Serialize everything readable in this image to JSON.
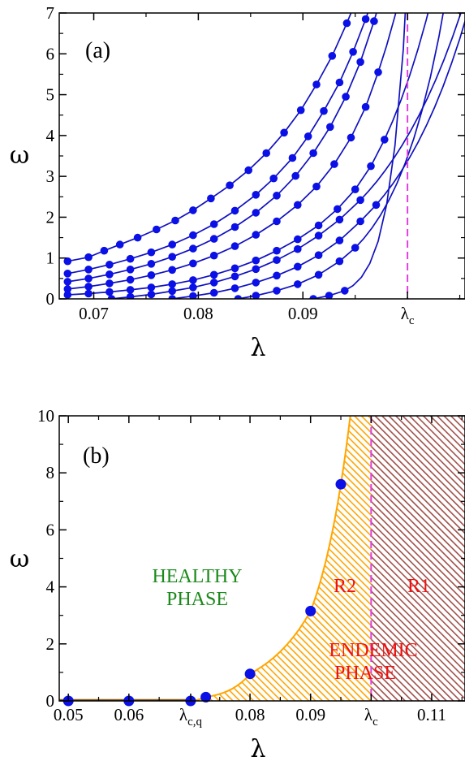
{
  "chart_data": [
    {
      "type": "line",
      "panel": "(a)",
      "xlabel": "λ",
      "ylabel": "ω",
      "xlim": [
        0.0667,
        0.1055
      ],
      "ylim": [
        0,
        7
      ],
      "x_ticks": [
        {
          "value": 0.07,
          "label": "0.07"
        },
        {
          "value": 0.08,
          "label": "0.08"
        },
        {
          "value": 0.09,
          "label": "0.09"
        },
        {
          "value": 0.1,
          "label": "λ",
          "sub": "c"
        }
      ],
      "y_ticks": [
        0,
        1,
        2,
        3,
        4,
        5,
        6,
        7
      ],
      "lambda_c": 0.1,
      "colors": {
        "curve": "#1010c0",
        "point": "#0a10e6",
        "critical_line": "#e040e0"
      },
      "series": [
        {
          "points": [
            [
              0.0675,
              0.92
            ],
            [
              0.0695,
              1.02
            ],
            [
              0.071,
              1.18
            ],
            [
              0.0725,
              1.33
            ],
            [
              0.0742,
              1.5
            ],
            [
              0.076,
              1.7
            ],
            [
              0.0778,
              1.92
            ],
            [
              0.0795,
              2.17
            ],
            [
              0.0812,
              2.46
            ],
            [
              0.083,
              2.78
            ],
            [
              0.0848,
              3.15
            ],
            [
              0.0865,
              3.57
            ],
            [
              0.0882,
              4.07
            ],
            [
              0.0898,
              4.62
            ],
            [
              0.0913,
              5.25
            ],
            [
              0.0928,
              5.95
            ],
            [
              0.0942,
              6.75
            ]
          ]
        },
        {
          "points": [
            [
              0.0675,
              0.62
            ],
            [
              0.0695,
              0.72
            ],
            [
              0.0715,
              0.84
            ],
            [
              0.0735,
              0.98
            ],
            [
              0.0755,
              1.14
            ],
            [
              0.0775,
              1.33
            ],
            [
              0.0795,
              1.56
            ],
            [
              0.0815,
              1.83
            ],
            [
              0.0835,
              2.16
            ],
            [
              0.0855,
              2.55
            ],
            [
              0.0872,
              2.95
            ],
            [
              0.089,
              3.45
            ],
            [
              0.0905,
              3.98
            ],
            [
              0.092,
              4.6
            ],
            [
              0.0935,
              5.3
            ],
            [
              0.0948,
              6.05
            ],
            [
              0.096,
              6.85
            ]
          ]
        },
        {
          "points": [
            [
              0.0675,
              0.42
            ],
            [
              0.0695,
              0.5
            ],
            [
              0.0715,
              0.6
            ],
            [
              0.0735,
              0.72
            ],
            [
              0.0755,
              0.86
            ],
            [
              0.0775,
              1.03
            ],
            [
              0.0795,
              1.23
            ],
            [
              0.0815,
              1.47
            ],
            [
              0.0835,
              1.76
            ],
            [
              0.0855,
              2.11
            ],
            [
              0.0875,
              2.53
            ],
            [
              0.0893,
              3.01
            ],
            [
              0.091,
              3.57
            ],
            [
              0.0926,
              4.21
            ],
            [
              0.0941,
              4.95
            ],
            [
              0.0955,
              5.8
            ],
            [
              0.0968,
              6.8
            ]
          ]
        },
        {
          "points": [
            [
              0.0675,
              0.24
            ],
            [
              0.0695,
              0.3
            ],
            [
              0.0715,
              0.38
            ],
            [
              0.0735,
              0.47
            ],
            [
              0.0755,
              0.58
            ],
            [
              0.0775,
              0.71
            ],
            [
              0.0795,
              0.87
            ],
            [
              0.0815,
              1.06
            ],
            [
              0.0835,
              1.29
            ],
            [
              0.0855,
              1.57
            ],
            [
              0.0875,
              1.9
            ],
            [
              0.0895,
              2.3
            ],
            [
              0.0913,
              2.75
            ],
            [
              0.093,
              3.3
            ],
            [
              0.0946,
              3.95
            ],
            [
              0.096,
              4.7
            ],
            [
              0.0972,
              5.55
            ]
          ]
        },
        {
          "points": [
            [
              0.0675,
              0.1
            ],
            [
              0.0695,
              0.13
            ],
            [
              0.0715,
              0.17
            ],
            [
              0.0735,
              0.22
            ],
            [
              0.0755,
              0.28
            ],
            [
              0.0775,
              0.36
            ],
            [
              0.0795,
              0.46
            ],
            [
              0.0815,
              0.59
            ],
            [
              0.0835,
              0.75
            ],
            [
              0.0855,
              0.94
            ],
            [
              0.0875,
              1.18
            ],
            [
              0.0895,
              1.46
            ],
            [
              0.0915,
              1.8
            ],
            [
              0.0933,
              2.2
            ],
            [
              0.095,
              2.68
            ],
            [
              0.0965,
              3.25
            ],
            [
              0.0978,
              3.9
            ]
          ]
        },
        {
          "points": [
            [
              0.0717,
              0.0
            ],
            [
              0.0735,
              0.05
            ],
            [
              0.0755,
              0.11
            ],
            [
              0.0775,
              0.19
            ],
            [
              0.0795,
              0.28
            ],
            [
              0.0815,
              0.4
            ],
            [
              0.0835,
              0.55
            ],
            [
              0.0855,
              0.73
            ],
            [
              0.0875,
              0.95
            ],
            [
              0.0895,
              1.22
            ],
            [
              0.0915,
              1.55
            ],
            [
              0.0935,
              1.94
            ],
            [
              0.0955,
              2.42
            ]
          ]
        },
        {
          "points": [
            [
              0.0775,
              0.0
            ],
            [
              0.0795,
              0.07
            ],
            [
              0.0815,
              0.15
            ],
            [
              0.0835,
              0.26
            ],
            [
              0.0855,
              0.4
            ],
            [
              0.0875,
              0.57
            ],
            [
              0.0895,
              0.79
            ],
            [
              0.0915,
              1.07
            ],
            [
              0.0935,
              1.43
            ],
            [
              0.0955,
              1.9
            ],
            [
              0.097,
              2.3
            ]
          ]
        },
        {
          "points": [
            [
              0.0838,
              0.0
            ],
            [
              0.0855,
              0.08
            ],
            [
              0.0875,
              0.2
            ],
            [
              0.0895,
              0.36
            ],
            [
              0.0915,
              0.59
            ],
            [
              0.0935,
              0.92
            ],
            [
              0.095,
              1.25
            ]
          ]
        },
        {
          "points": [
            [
              0.091,
              0.0
            ],
            [
              0.0925,
              0.08
            ],
            [
              0.094,
              0.2
            ]
          ]
        }
      ]
    },
    {
      "type": "area",
      "panel": "(b)",
      "xlabel": "λ",
      "ylabel": "ω",
      "xlim": [
        0.0485,
        0.1155
      ],
      "ylim": [
        0,
        10
      ],
      "x_ticks": [
        {
          "value": 0.05,
          "label": "0.05"
        },
        {
          "value": 0.06,
          "label": "0.06"
        },
        {
          "value": 0.0702,
          "label": "λ",
          "sub": "c,q"
        },
        {
          "value": 0.08,
          "label": "0.08"
        },
        {
          "value": 0.09,
          "label": "0.09"
        },
        {
          "value": 0.1,
          "label": "λ",
          "sub": "c"
        },
        {
          "value": 0.11,
          "label": "0.11"
        }
      ],
      "y_ticks": [
        0,
        2,
        4,
        6,
        8,
        10
      ],
      "lambda_cq": 0.0702,
      "lambda_c": 0.1,
      "colors": {
        "endemic_fill": "#ffa500",
        "r1_fill": "#a0504a",
        "point": "#0a10e6",
        "critical_line": "#e040e0",
        "healthy_text": "#1a8a1a",
        "endemic_text": "#ee1111"
      },
      "points": [
        [
          0.05,
          0.0
        ],
        [
          0.06,
          0.0
        ],
        [
          0.0702,
          0.0
        ],
        [
          0.0727,
          0.13
        ],
        [
          0.08,
          0.95
        ],
        [
          0.09,
          3.15
        ],
        [
          0.095,
          7.6
        ]
      ],
      "annotations": {
        "healthy_line1": "HEALTHY",
        "healthy_line2": "PHASE",
        "r2": "R2",
        "r1": "R1",
        "endemic_line1": "ENDEMIC",
        "endemic_line2": "PHASE"
      }
    }
  ]
}
